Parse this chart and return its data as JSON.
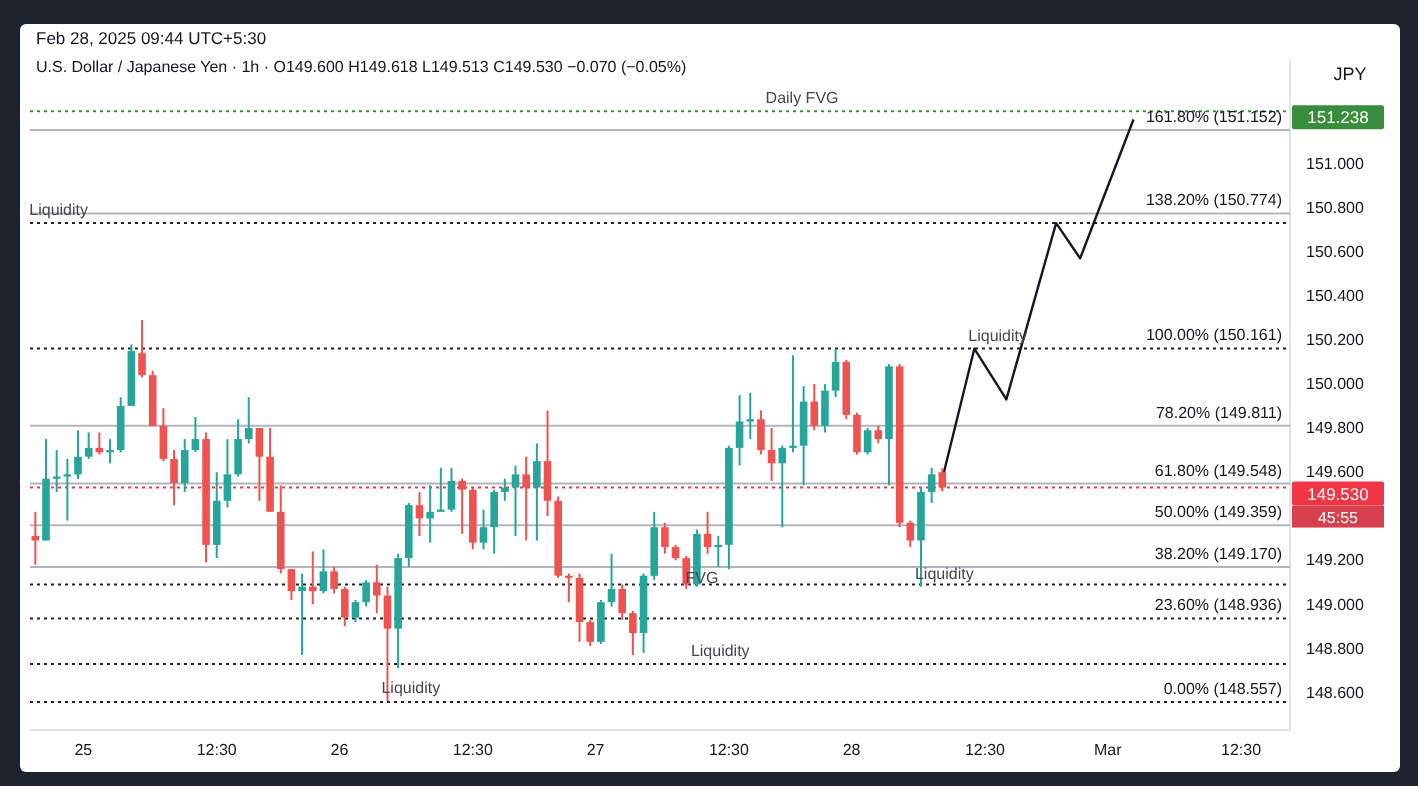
{
  "chart_data": {
    "type": "candlestick",
    "subtitle": "Feb 28, 2025 09:44 UTC+5:30",
    "title": "U.S. Dollar / Japanese Yen · 1h · O149.600 H149.618 L149.513 C149.530 −0.070 (−0.05%)",
    "ylabel": "JPY",
    "xlim": [
      "2025-02-24T19:00",
      "2025-03-01T17:05"
    ],
    "ylim": [
      148.43,
      151.47
    ],
    "xticks": [
      {
        "value": "2025-02-25T00:00",
        "label": "25"
      },
      {
        "value": "2025-02-25T12:30",
        "label": "12:30"
      },
      {
        "value": "2025-02-26T00:00",
        "label": "26"
      },
      {
        "value": "2025-02-26T12:30",
        "label": "12:30"
      },
      {
        "value": "2025-02-27T00:00",
        "label": "27"
      },
      {
        "value": "2025-02-27T12:30",
        "label": "12:30"
      },
      {
        "value": "2025-02-28T00:00",
        "label": "28"
      },
      {
        "value": "2025-02-28T12:30",
        "label": "12:30"
      },
      {
        "value": "2025-03-01T00:00",
        "label": "Mar"
      },
      {
        "value": "2025-03-01T12:30",
        "label": "12:30"
      }
    ],
    "yticks": [
      {
        "value": 148.6,
        "label": "148.600"
      },
      {
        "value": 148.8,
        "label": "148.800"
      },
      {
        "value": 149.0,
        "label": "149.000"
      },
      {
        "value": 149.2,
        "label": "149.200"
      },
      {
        "value": 149.6,
        "label": "149.600"
      },
      {
        "value": 149.8,
        "label": "149.800"
      },
      {
        "value": 150.0,
        "label": "150.000"
      },
      {
        "value": 150.2,
        "label": "150.200"
      },
      {
        "value": 150.4,
        "label": "150.400"
      },
      {
        "value": 150.6,
        "label": "150.600"
      },
      {
        "value": 150.8,
        "label": "150.800"
      },
      {
        "value": 151.0,
        "label": "151.000"
      }
    ],
    "series": [
      {
        "x": [
          "2025-02-24T19:30",
          "2025-02-24T20:30",
          "2025-02-24T21:30",
          "2025-02-24T22:30",
          "2025-02-24T23:30",
          "2025-02-25T00:30",
          "2025-02-25T01:30",
          "2025-02-25T02:30",
          "2025-02-25T03:30",
          "2025-02-25T04:30",
          "2025-02-25T05:30",
          "2025-02-25T06:30",
          "2025-02-25T07:30",
          "2025-02-25T08:30",
          "2025-02-25T09:30",
          "2025-02-25T10:30",
          "2025-02-25T11:30",
          "2025-02-25T12:30",
          "2025-02-25T13:30",
          "2025-02-25T14:30",
          "2025-02-25T15:30",
          "2025-02-25T16:30",
          "2025-02-25T17:30",
          "2025-02-25T18:30",
          "2025-02-25T19:30",
          "2025-02-25T20:30",
          "2025-02-25T21:30",
          "2025-02-25T22:30",
          "2025-02-25T23:30",
          "2025-02-26T00:30",
          "2025-02-26T01:30",
          "2025-02-26T02:30",
          "2025-02-26T03:30",
          "2025-02-26T04:30",
          "2025-02-26T05:30",
          "2025-02-26T06:30",
          "2025-02-26T07:30",
          "2025-02-26T08:30",
          "2025-02-26T09:30",
          "2025-02-26T10:30",
          "2025-02-26T11:30",
          "2025-02-26T12:30",
          "2025-02-26T13:30",
          "2025-02-26T14:30",
          "2025-02-26T15:30",
          "2025-02-26T16:30",
          "2025-02-26T17:30",
          "2025-02-26T18:30",
          "2025-02-26T19:30",
          "2025-02-26T20:30",
          "2025-02-26T21:30",
          "2025-02-26T22:30",
          "2025-02-26T23:30",
          "2025-02-27T00:30",
          "2025-02-27T01:30",
          "2025-02-27T02:30",
          "2025-02-27T03:30",
          "2025-02-27T04:30",
          "2025-02-27T05:30",
          "2025-02-27T06:30",
          "2025-02-27T07:30",
          "2025-02-27T08:30",
          "2025-02-27T09:30",
          "2025-02-27T10:30",
          "2025-02-27T11:30",
          "2025-02-27T12:30",
          "2025-02-27T13:30",
          "2025-02-27T14:30",
          "2025-02-27T15:30",
          "2025-02-27T16:30",
          "2025-02-27T17:30",
          "2025-02-27T18:30",
          "2025-02-27T19:30",
          "2025-02-27T20:30",
          "2025-02-27T21:30",
          "2025-02-27T22:30",
          "2025-02-27T23:30",
          "2025-02-28T00:30",
          "2025-02-28T01:30",
          "2025-02-28T02:30",
          "2025-02-28T03:30",
          "2025-02-28T04:30",
          "2025-02-28T05:30",
          "2025-02-28T06:30",
          "2025-02-28T07:30",
          "2025-02-28T08:30"
        ],
        "ohlc": [
          [
            149.31,
            149.42,
            149.18,
            149.29
          ],
          [
            149.29,
            149.75,
            149.29,
            149.57
          ],
          [
            149.57,
            149.7,
            149.51,
            149.58
          ],
          [
            149.58,
            149.66,
            149.38,
            149.59
          ],
          [
            149.59,
            149.79,
            149.57,
            149.67
          ],
          [
            149.67,
            149.78,
            149.66,
            149.71
          ],
          [
            149.71,
            149.78,
            149.68,
            149.69
          ],
          [
            149.69,
            149.75,
            149.64,
            149.7
          ],
          [
            149.7,
            149.94,
            149.69,
            149.9
          ],
          [
            149.9,
            150.18,
            149.9,
            150.15
          ],
          [
            150.14,
            150.29,
            150.03,
            150.04
          ],
          [
            150.04,
            150.06,
            149.81,
            149.81
          ],
          [
            149.81,
            149.89,
            149.65,
            149.66
          ],
          [
            149.66,
            149.7,
            149.45,
            149.55
          ],
          [
            149.55,
            149.75,
            149.51,
            149.7
          ],
          [
            149.7,
            149.85,
            149.69,
            149.75
          ],
          [
            149.75,
            149.78,
            149.19,
            149.27
          ],
          [
            149.27,
            149.6,
            149.21,
            149.47
          ],
          [
            149.47,
            149.75,
            149.44,
            149.59
          ],
          [
            149.59,
            149.84,
            149.58,
            149.75
          ],
          [
            149.75,
            149.94,
            149.73,
            149.8
          ],
          [
            149.8,
            149.8,
            149.47,
            149.67
          ],
          [
            149.67,
            149.8,
            149.42,
            149.42
          ],
          [
            149.42,
            149.54,
            149.14,
            149.16
          ],
          [
            149.16,
            149.16,
            149.02,
            149.06
          ],
          [
            149.06,
            149.14,
            148.77,
            149.08
          ],
          [
            149.08,
            149.24,
            149.0,
            149.06
          ],
          [
            149.06,
            149.25,
            149.05,
            149.15
          ],
          [
            149.15,
            149.17,
            149.05,
            149.07
          ],
          [
            149.07,
            149.08,
            148.9,
            148.94
          ],
          [
            148.94,
            149.02,
            148.92,
            149.01
          ],
          [
            149.01,
            149.11,
            148.99,
            149.1
          ],
          [
            149.1,
            149.18,
            148.96,
            149.04
          ],
          [
            149.04,
            149.08,
            148.56,
            148.89
          ],
          [
            148.89,
            149.23,
            148.71,
            149.21
          ],
          [
            149.21,
            149.46,
            149.17,
            149.45
          ],
          [
            149.45,
            149.51,
            149.31,
            149.39
          ],
          [
            149.39,
            149.54,
            149.28,
            149.42
          ],
          [
            149.42,
            149.62,
            149.42,
            149.43
          ],
          [
            149.43,
            149.62,
            149.42,
            149.56
          ],
          [
            149.56,
            149.57,
            149.32,
            149.52
          ],
          [
            149.52,
            149.53,
            149.25,
            149.28
          ],
          [
            149.28,
            149.43,
            149.25,
            149.35
          ],
          [
            149.35,
            149.52,
            149.23,
            149.51
          ],
          [
            149.51,
            149.57,
            149.47,
            149.53
          ],
          [
            149.53,
            149.63,
            149.31,
            149.59
          ],
          [
            149.59,
            149.67,
            149.29,
            149.53
          ],
          [
            149.53,
            149.73,
            149.29,
            149.65
          ],
          [
            149.65,
            149.88,
            149.4,
            149.47
          ],
          [
            149.47,
            149.49,
            149.12,
            149.13
          ],
          [
            149.13,
            149.14,
            149.01,
            149.12
          ],
          [
            149.12,
            149.14,
            148.83,
            148.92
          ],
          [
            148.92,
            148.93,
            148.81,
            148.83
          ],
          [
            148.83,
            149.02,
            148.82,
            149.01
          ],
          [
            149.01,
            149.23,
            148.99,
            149.07
          ],
          [
            149.07,
            149.09,
            148.93,
            148.96
          ],
          [
            148.96,
            148.97,
            148.77,
            148.87
          ],
          [
            148.87,
            149.14,
            148.78,
            149.13
          ],
          [
            149.13,
            149.42,
            149.11,
            149.35
          ],
          [
            149.35,
            149.37,
            149.23,
            149.26
          ],
          [
            149.26,
            149.27,
            149.2,
            149.21
          ],
          [
            149.21,
            149.22,
            149.07,
            149.09
          ],
          [
            149.09,
            149.34,
            149.08,
            149.32
          ],
          [
            149.32,
            149.42,
            149.23,
            149.26
          ],
          [
            149.26,
            149.31,
            149.17,
            149.27
          ],
          [
            149.27,
            149.72,
            149.16,
            149.71
          ],
          [
            149.71,
            149.95,
            149.63,
            149.83
          ],
          [
            149.83,
            149.96,
            149.75,
            149.84
          ],
          [
            149.84,
            149.88,
            149.68,
            149.7
          ],
          [
            149.7,
            149.8,
            149.56,
            149.64
          ],
          [
            149.64,
            149.72,
            149.35,
            149.71
          ],
          [
            149.71,
            150.13,
            149.69,
            149.72
          ],
          [
            149.72,
            149.99,
            149.54,
            149.92
          ],
          [
            149.92,
            150.0,
            149.79,
            149.81
          ],
          [
            149.81,
            150.0,
            149.78,
            149.97
          ],
          [
            149.97,
            150.16,
            149.94,
            150.1
          ],
          [
            150.1,
            150.11,
            149.84,
            149.86
          ],
          [
            149.86,
            149.87,
            149.68,
            149.69
          ],
          [
            149.69,
            149.8,
            149.68,
            149.79
          ],
          [
            149.79,
            149.81,
            149.73,
            149.75
          ],
          [
            149.75,
            150.09,
            149.54,
            150.08
          ],
          [
            150.08,
            150.09,
            149.35,
            149.37
          ],
          [
            149.37,
            149.38,
            149.26,
            149.29
          ],
          [
            149.29,
            149.53,
            149.08,
            149.51
          ],
          [
            149.51,
            149.62,
            149.46,
            149.59
          ],
          [
            149.6,
            149.618,
            149.513,
            149.53
          ]
        ],
        "colors": [
          "#ef5350",
          "#26a69a",
          "#26a69a",
          "#26a69a",
          "#26a69a",
          "#26a69a",
          "#ef5350",
          "#26a69a",
          "#26a69a",
          "#26a69a",
          "#ef5350",
          "#ef5350",
          "#ef5350",
          "#ef5350",
          "#26a69a",
          "#26a69a",
          "#ef5350",
          "#26a69a",
          "#26a69a",
          "#26a69a",
          "#26a69a",
          "#ef5350",
          "#ef5350",
          "#ef5350",
          "#ef5350",
          "#26a69a",
          "#ef5350",
          "#26a69a",
          "#ef5350",
          "#ef5350",
          "#26a69a",
          "#26a69a",
          "#ef5350",
          "#ef5350",
          "#26a69a",
          "#26a69a",
          "#ef5350",
          "#26a69a",
          "#26a69a",
          "#26a69a",
          "#ef5350",
          "#ef5350",
          "#26a69a",
          "#26a69a",
          "#26a69a",
          "#26a69a",
          "#ef5350",
          "#26a69a",
          "#ef5350",
          "#ef5350",
          "#ef5350",
          "#ef5350",
          "#ef5350",
          "#26a69a",
          "#26a69a",
          "#ef5350",
          "#ef5350",
          "#26a69a",
          "#26a69a",
          "#ef5350",
          "#ef5350",
          "#ef5350",
          "#26a69a",
          "#ef5350",
          "#26a69a",
          "#26a69a",
          "#26a69a",
          "#26a69a",
          "#ef5350",
          "#ef5350",
          "#26a69a",
          "#26a69a",
          "#26a69a",
          "#ef5350",
          "#26a69a",
          "#26a69a",
          "#ef5350",
          "#ef5350",
          "#26a69a",
          "#ef5350",
          "#26a69a",
          "#ef5350",
          "#ef5350",
          "#26a69a",
          "#26a69a",
          "#ef5350"
        ]
      },
      {
        "type": "line",
        "color": "#131722",
        "x": [
          "2025-02-28T08:30",
          "2025-02-28T11:30",
          "2025-02-28T14:30",
          "2025-02-28T19:10",
          "2025-02-28T21:25",
          "2025-03-01T02:25"
        ],
        "values": [
          149.57,
          150.16,
          149.93,
          150.73,
          150.57,
          151.2
        ]
      }
    ],
    "ref_lines": [
      {
        "axis": "y",
        "value": 151.238,
        "label": "151.238",
        "color": "#388e3c",
        "line_style": "dotted"
      },
      {
        "axis": "y",
        "value": 149.53,
        "label": "149.530",
        "color": "#f23645",
        "line_style": "dotted"
      },
      {
        "axis": "y",
        "value": 151.152,
        "label": "161.80% (151.152)",
        "line_style": "solid"
      },
      {
        "axis": "y",
        "value": 150.774,
        "label": "138.20% (150.774)",
        "line_style": "solid"
      },
      {
        "axis": "y",
        "value": 150.161,
        "label": "100.00% (150.161)",
        "line_style": "dotted"
      },
      {
        "axis": "y",
        "value": 149.811,
        "label": "78.20% (149.811)",
        "line_style": "solid"
      },
      {
        "axis": "y",
        "value": 149.548,
        "label": "61.80% (149.548)",
        "line_style": "solid"
      },
      {
        "axis": "y",
        "value": 149.359,
        "label": "50.00% (149.359)",
        "line_style": "solid"
      },
      {
        "axis": "y",
        "value": 149.17,
        "label": "38.20% (149.170)",
        "line_style": "solid"
      },
      {
        "axis": "y",
        "value": 148.936,
        "label": "23.60% (148.936)",
        "line_style": "dotted"
      },
      {
        "axis": "y",
        "value": 148.557,
        "label": "0.00% (148.557)",
        "line_style": "dotted"
      },
      {
        "axis": "y",
        "value": 150.73,
        "line_style": "dotted"
      },
      {
        "axis": "y",
        "value": 149.09,
        "line_style": "dotted"
      },
      {
        "axis": "y",
        "value": 148.73,
        "line_style": "dotted"
      }
    ],
    "annotations": [
      {
        "text": "Daily FVG",
        "x": "2025-02-27T16:30",
        "y": 151.238
      },
      {
        "text": "Liquidity",
        "x": "2025-02-24T19:30",
        "y": 150.73
      },
      {
        "text": "Liquidity",
        "x": "2025-02-28T11:30",
        "y": 150.16
      },
      {
        "text": "Liquidity",
        "x": "2025-02-28T06:30",
        "y": 149.08
      },
      {
        "text": "FVG",
        "x": "2025-02-27T09:00",
        "y": 149.06
      },
      {
        "text": "Liquidity",
        "x": "2025-02-27T09:30",
        "y": 148.73
      },
      {
        "text": "Liquidity",
        "x": "2025-02-26T04:30",
        "y": 148.56
      },
      "45:55"
    ]
  }
}
